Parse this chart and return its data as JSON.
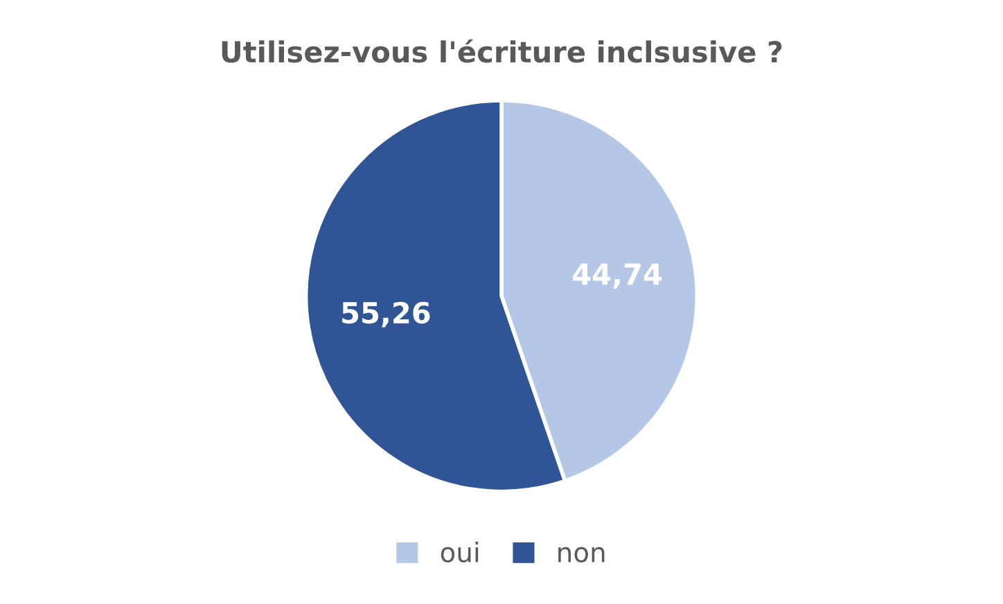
{
  "chart_data": {
    "type": "pie",
    "title": "Utilisez-vous l'écriture inclsusive ?",
    "categories": [
      "oui",
      "non"
    ],
    "values": [
      44.74,
      55.26
    ],
    "value_labels": [
      "44,74",
      "55,26"
    ],
    "colors": [
      "#b4c7e7",
      "#2f5597"
    ],
    "legend": "bottom"
  }
}
